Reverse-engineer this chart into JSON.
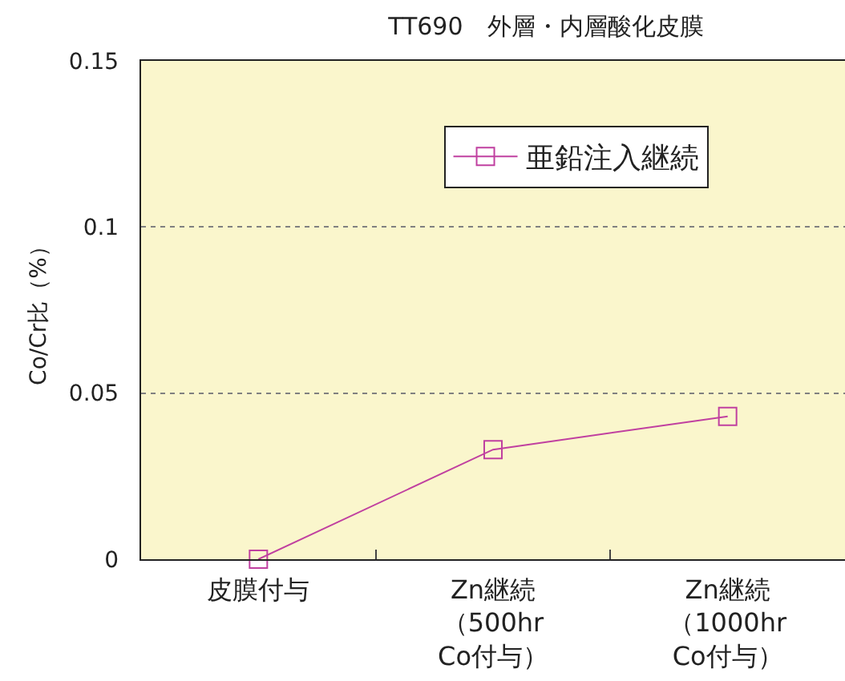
{
  "chart_data": {
    "type": "line",
    "title": "TT690　外層・内層酸化皮膜",
    "ylabel": "Co/Cr比（%）",
    "categories": [
      "皮膜付与",
      "Zn継続（500hrCo付与）",
      "Zn継続（1000hrCo付与）"
    ],
    "series": [
      {
        "name": "亜鉛注入継続",
        "color": "#c040a0",
        "values": [
          0,
          0.033,
          0.043
        ]
      }
    ],
    "ylim": [
      0,
      0.15
    ],
    "yticks": [
      0,
      0.05,
      0.1,
      0.15
    ],
    "grid": "y",
    "legend": "top right",
    "marker": "square",
    "line_style": "solid"
  }
}
